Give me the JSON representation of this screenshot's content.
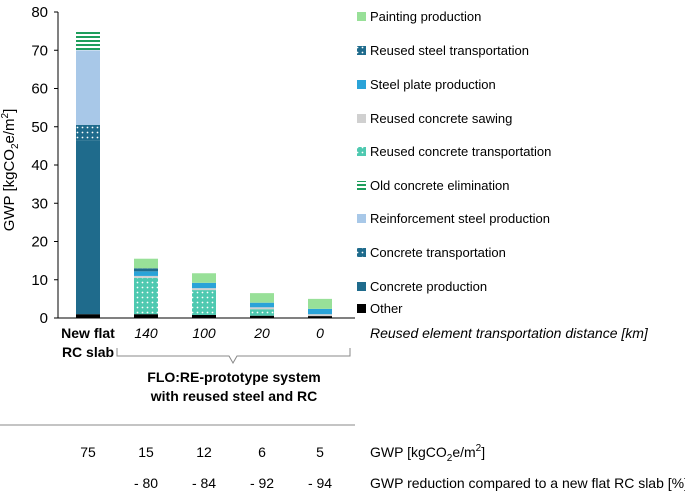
{
  "chart_data": {
    "type": "bar",
    "stacked": true,
    "ylabel": "GWP [kgCO₂e/m²]",
    "ylabel_main": "GWP [kgCO",
    "ylabel_sub": "2",
    "ylabel_mid": "e/m",
    "ylabel_sup": "2",
    "ylabel_end": "]",
    "ylim": [
      0,
      80
    ],
    "yticks": [
      "0",
      "10",
      "20",
      "30",
      "40",
      "50",
      "60",
      "70",
      "80"
    ],
    "categories": [
      {
        "line1": "New flat",
        "line2": "RC slab",
        "bold": true
      },
      {
        "line1": "140",
        "line2": "",
        "bold": false
      },
      {
        "line1": "100",
        "line2": "",
        "bold": false
      },
      {
        "line1": "20",
        "line2": "",
        "bold": false
      },
      {
        "line1": "0",
        "line2": "",
        "bold": false
      }
    ],
    "xaxis_note": "Reused element transportation distance [km]",
    "group_label_line1": "FLO:RE-prototype system",
    "group_label_line2": "with reused steel and RC",
    "series": [
      {
        "name": "Other",
        "color": "#000000",
        "pattern": "solid",
        "values": [
          1,
          1,
          0.8,
          0.6,
          0.5
        ]
      },
      {
        "name": "Concrete production",
        "color": "#1f6b8c",
        "pattern": "solid",
        "values": [
          45.5,
          0,
          0,
          0,
          0
        ]
      },
      {
        "name": "Concrete transportation",
        "color": "#1f6b8c",
        "pattern": "dots",
        "values": [
          4,
          0,
          0,
          0,
          0
        ]
      },
      {
        "name": "Reinforcement steel production",
        "color": "#a8c8e8",
        "pattern": "solid",
        "values": [
          19.5,
          0,
          0,
          0,
          0
        ]
      },
      {
        "name": "Old concrete elimination",
        "color": "#1e9e5c",
        "pattern": "hlines",
        "values": [
          5,
          0,
          0,
          0,
          0
        ]
      },
      {
        "name": "Reused concrete transportation",
        "color": "#4ec9b0",
        "pattern": "dots",
        "values": [
          0,
          9.5,
          6.5,
          1.7,
          0
        ]
      },
      {
        "name": "Reused concrete sawing",
        "color": "#d0d0d0",
        "pattern": "solid",
        "values": [
          0,
          0.5,
          0.5,
          0.5,
          0.5
        ]
      },
      {
        "name": "Steel plate production",
        "color": "#2aa3d8",
        "pattern": "solid",
        "values": [
          0,
          1.2,
          1.4,
          1.2,
          1.4
        ]
      },
      {
        "name": "Reused steel transportation",
        "color": "#1f6b8c",
        "pattern": "dots",
        "values": [
          0,
          0.8,
          0,
          0,
          0
        ]
      },
      {
        "name": "Painting production",
        "color": "#98e098",
        "pattern": "solid",
        "values": [
          0,
          2.5,
          2.5,
          2.5,
          2.6
        ]
      }
    ],
    "legend_order_top_to_bottom": [
      "Painting production",
      "Reused steel transportation",
      "Steel plate production",
      "Reused concrete sawing",
      "Reused concrete transportation",
      "Old concrete elimination",
      "Reinforcement steel production",
      "Concrete transportation",
      "Concrete production",
      "Other"
    ],
    "legend_position": "right"
  },
  "table": {
    "row1": {
      "values": [
        "75",
        "15",
        "12",
        "6",
        "5"
      ],
      "label_main": "GWP [kgCO",
      "label_sub": "2",
      "label_mid": "e/m",
      "label_sup": "2",
      "label_end": "]"
    },
    "row2": {
      "values": [
        "",
        "- 80",
        "- 84",
        "- 92",
        "- 94"
      ],
      "label": "GWP reduction compared to a new flat RC slab [%]"
    }
  }
}
